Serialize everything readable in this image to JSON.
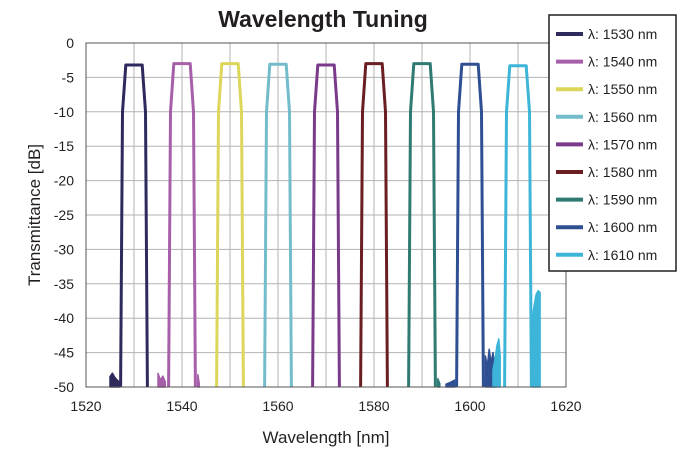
{
  "chart_data": {
    "type": "line",
    "title": "Wavelength Tuning",
    "xlabel": "Wavelength [nm]",
    "ylabel": "Transmittance [dB]",
    "xlim": [
      1520,
      1620
    ],
    "ylim": [
      -50,
      0
    ],
    "x_ticks": [
      "1520",
      "1540",
      "1560",
      "1580",
      "1600",
      "1620"
    ],
    "x_tick_values": [
      1520,
      1540,
      1560,
      1580,
      1600,
      1620
    ],
    "y_ticks": [
      "0",
      "-5",
      "-10",
      "-15",
      "-20",
      "-25",
      "-30",
      "-35",
      "-40",
      "-45",
      "-50"
    ],
    "y_tick_values": [
      0,
      -5,
      -10,
      -15,
      -20,
      -25,
      -30,
      -35,
      -40,
      -45,
      -50
    ],
    "grid": true,
    "legend_position": "top-right",
    "series": [
      {
        "name": "λ: 1530 nm",
        "color": "#2e2a5c",
        "x": [
          1527.2,
          1527.6,
          1528.3,
          1531.7,
          1532.4,
          1532.8
        ],
        "y": [
          -50,
          -10,
          -3.2,
          -3.2,
          -10,
          -50
        ]
      },
      {
        "name": "λ: 1540 nm",
        "color": "#a65fa8",
        "x": [
          1537.2,
          1537.6,
          1538.3,
          1541.7,
          1542.4,
          1542.8
        ],
        "y": [
          -50,
          -10,
          -3.0,
          -3.0,
          -10,
          -50
        ]
      },
      {
        "name": "λ: 1550 nm",
        "color": "#dcd65a",
        "x": [
          1547.2,
          1547.6,
          1548.3,
          1551.7,
          1552.4,
          1552.8
        ],
        "y": [
          -50,
          -10,
          -3.0,
          -3.0,
          -10,
          -50
        ]
      },
      {
        "name": "λ: 1560 nm",
        "color": "#72bccb",
        "x": [
          1557.2,
          1557.6,
          1558.3,
          1561.7,
          1562.4,
          1562.8
        ],
        "y": [
          -50,
          -10,
          -3.1,
          -3.1,
          -10,
          -50
        ]
      },
      {
        "name": "λ: 1570 nm",
        "color": "#7a3a8a",
        "x": [
          1567.2,
          1567.6,
          1568.3,
          1571.7,
          1572.4,
          1572.8
        ],
        "y": [
          -50,
          -10,
          -3.2,
          -3.2,
          -10,
          -50
        ]
      },
      {
        "name": "λ: 1580 nm",
        "color": "#6b1e22",
        "x": [
          1577.2,
          1577.6,
          1578.3,
          1581.7,
          1582.4,
          1582.8
        ],
        "y": [
          -50,
          -10,
          -3.0,
          -3.0,
          -10,
          -50
        ]
      },
      {
        "name": "λ: 1590 nm",
        "color": "#2f7b72",
        "x": [
          1587.2,
          1587.6,
          1588.3,
          1591.7,
          1592.4,
          1592.8
        ],
        "y": [
          -50,
          -10,
          -3.0,
          -3.0,
          -10,
          -50
        ]
      },
      {
        "name": "λ: 1600 nm",
        "color": "#2f4f93",
        "x": [
          1597.2,
          1597.6,
          1598.3,
          1601.7,
          1602.4,
          1602.8
        ],
        "y": [
          -50,
          -10,
          -3.1,
          -3.1,
          -10,
          -50
        ]
      },
      {
        "name": "λ: 1610 nm",
        "color": "#3db5d8",
        "x": [
          1607.2,
          1607.6,
          1608.3,
          1611.7,
          1612.4,
          1612.8
        ],
        "y": [
          -50,
          -10,
          -3.3,
          -3.3,
          -10,
          -50
        ]
      }
    ],
    "noise_bursts": [
      {
        "color": "#2e2a5c",
        "x": [
          1525.0,
          1525.5,
          1526.0,
          1526.5,
          1527.0
        ],
        "y": [
          -48.5,
          -48.0,
          -48.6,
          -49.0,
          -49.3
        ]
      },
      {
        "color": "#a65fa8",
        "x": [
          1535.0,
          1535.5,
          1536.0,
          1536.5
        ],
        "y": [
          -48.0,
          -49.0,
          -48.4,
          -49.2
        ]
      },
      {
        "color": "#a65fa8",
        "x": [
          1543.3,
          1543.6
        ],
        "y": [
          -48.2,
          -49.5
        ]
      },
      {
        "color": "#2f7b72",
        "x": [
          1593.3,
          1593.7
        ],
        "y": [
          -48.8,
          -49.5
        ]
      },
      {
        "color": "#2f4f93",
        "x": [
          1595.0,
          1596.0,
          1596.8
        ],
        "y": [
          -49.6,
          -49.3,
          -49.0
        ]
      },
      {
        "color": "#2f4f93",
        "x": [
          1603.2,
          1603.6,
          1604.0,
          1604.4,
          1604.8,
          1605.2
        ],
        "y": [
          -45.5,
          -47.0,
          -44.5,
          -46.5,
          -45.0,
          -47.5
        ]
      },
      {
        "color": "#3db5d8",
        "x": [
          1604.8,
          1605.2,
          1605.6,
          1606.0,
          1606.3
        ],
        "y": [
          -47.5,
          -46.0,
          -44.0,
          -43.0,
          -45.5
        ]
      },
      {
        "color": "#3db5d8",
        "x": [
          1613.0,
          1613.4,
          1613.8,
          1614.2,
          1614.6
        ],
        "y": [
          -40.0,
          -38.0,
          -36.5,
          -36.0,
          -36.3
        ]
      }
    ]
  }
}
